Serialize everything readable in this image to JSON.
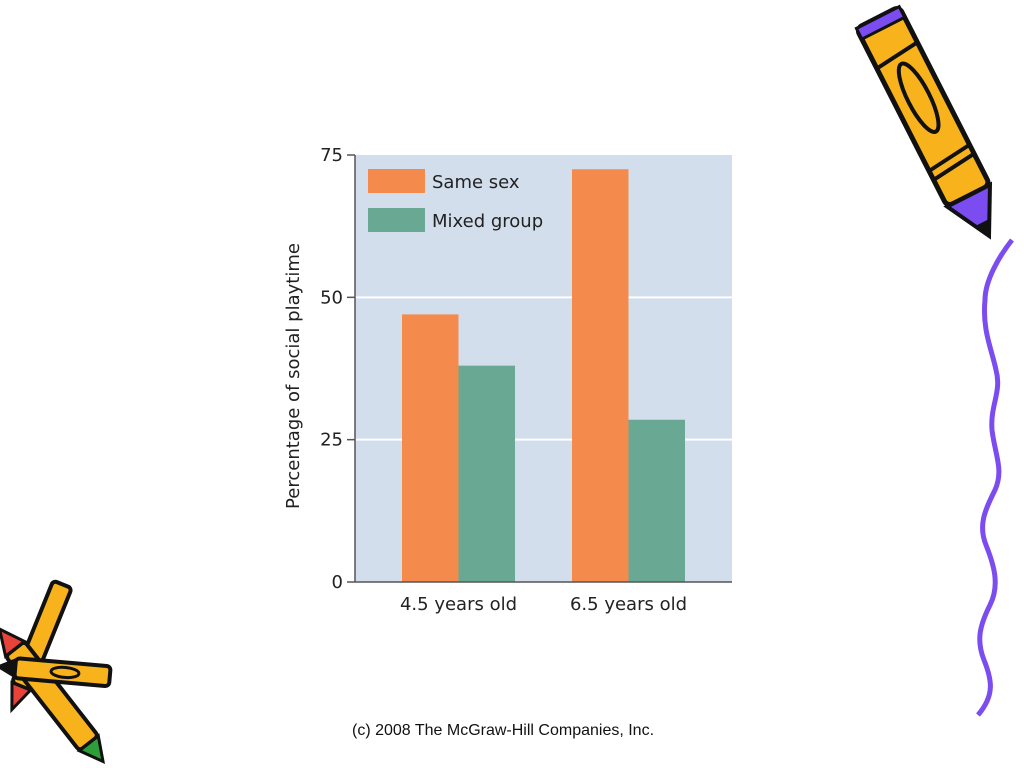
{
  "footer": "(c) 2008 The McGraw-Hill Companies, Inc.",
  "colors": {
    "plot_background": "#d3deec",
    "same_sex": "#f48a4c",
    "mixed_group": "#69a893",
    "gridline": "#ffffff",
    "axis": "#555555",
    "crayon_yellow": "#f7b21c",
    "crayon_purple": "#7b4cf0",
    "wave": "#7b4cf0"
  },
  "decorations": [
    "crayon-top-right-icon",
    "purple-wave-icon",
    "crayons-bottom-left-icon"
  ],
  "chart_data": {
    "type": "bar",
    "categories": [
      "4.5 years old",
      "6.5 years old"
    ],
    "series": [
      {
        "name": "Same sex",
        "values": [
          47,
          72.5
        ]
      },
      {
        "name": "Mixed group",
        "values": [
          38,
          28.5
        ]
      }
    ],
    "title": "",
    "xlabel": "",
    "ylabel": "Percentage of social playtime",
    "ylim": [
      0,
      75
    ],
    "yticks": [
      0,
      25,
      50,
      75
    ],
    "grid": true,
    "legend_position": "top-left"
  }
}
